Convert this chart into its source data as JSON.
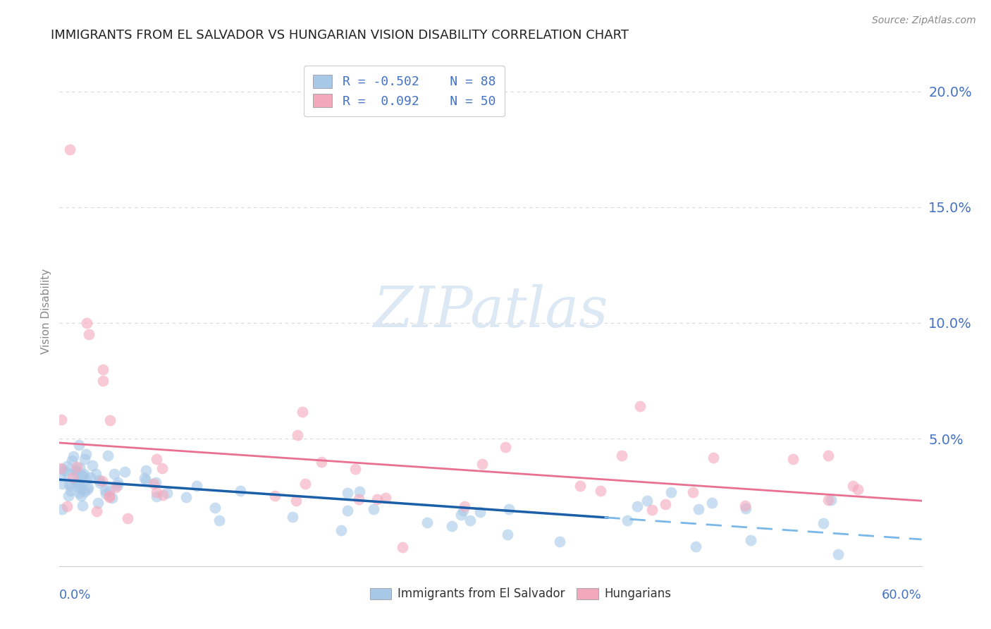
{
  "title": "IMMIGRANTS FROM EL SALVADOR VS HUNGARIAN VISION DISABILITY CORRELATION CHART",
  "source": "Source: ZipAtlas.com",
  "ylabel": "Vision Disability",
  "xlim": [
    0.0,
    0.6
  ],
  "ylim": [
    -0.005,
    0.215
  ],
  "blue_scatter_color": "#a8c8e8",
  "pink_scatter_color": "#f4a8bc",
  "trend_blue_solid": "#1a5fa8",
  "trend_blue_dash": "#7ab8e8",
  "trend_pink": "#e87090",
  "watermark_color": "#dce8f4",
  "grid_color": "#d8d8d8",
  "tick_color": "#4472c4",
  "title_color": "#222222",
  "source_color": "#888888",
  "ylabel_color": "#888888",
  "background_color": "#ffffff",
  "ytick_vals": [
    0.05,
    0.1,
    0.15,
    0.2
  ],
  "ytick_labels": [
    "5.0%",
    "10.0%",
    "15.0%",
    "20.0%"
  ]
}
